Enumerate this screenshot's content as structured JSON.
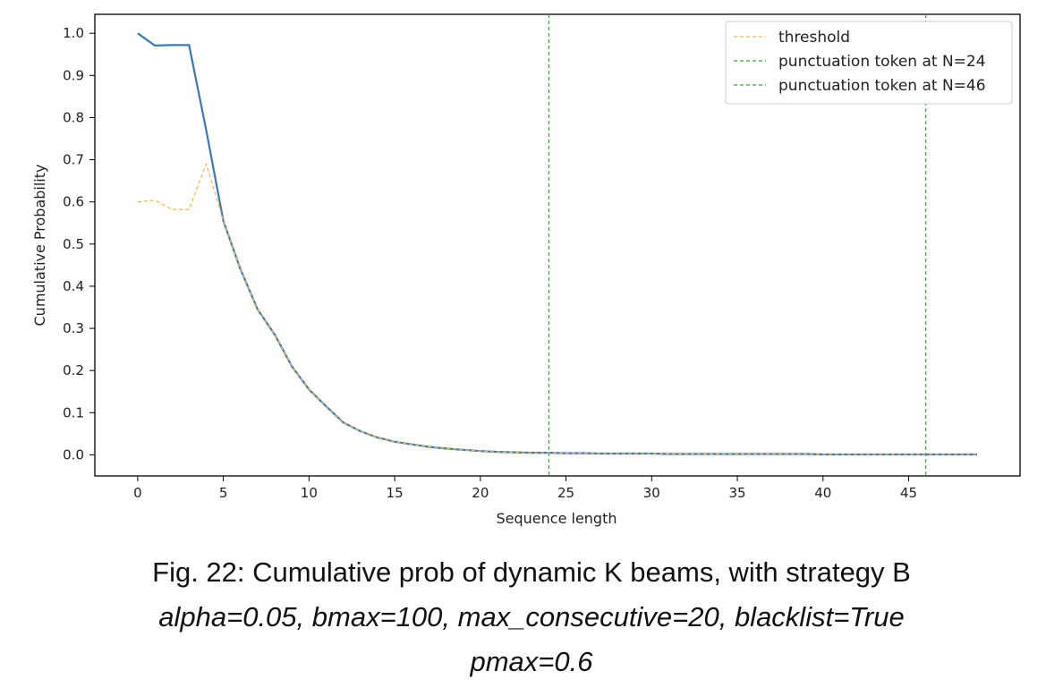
{
  "chart_data": {
    "type": "line",
    "xlabel": "Sequence length",
    "ylabel": "Cumulative Probability",
    "xlim": [
      -2.5,
      51.5
    ],
    "ylim": [
      -0.05,
      1.045
    ],
    "xticks": [
      0,
      5,
      10,
      15,
      20,
      25,
      30,
      35,
      40,
      45
    ],
    "yticks": [
      0.0,
      0.1,
      0.2,
      0.3,
      0.4,
      0.5,
      0.6,
      0.7,
      0.8,
      0.9,
      1.0
    ],
    "grid": false,
    "legend_position": "top-right",
    "series": [
      {
        "name": "",
        "color": "#3a78b8",
        "style": "solid",
        "x": [
          0,
          1,
          2,
          3,
          4,
          5,
          6,
          7,
          8,
          9,
          10,
          11,
          12,
          13,
          14,
          15,
          16,
          17,
          18,
          19,
          20,
          21,
          22,
          23,
          24,
          25,
          26,
          27,
          28,
          29,
          30,
          31,
          32,
          33,
          34,
          35,
          36,
          37,
          38,
          39,
          40,
          41,
          42,
          43,
          44,
          45,
          46,
          47,
          48,
          49
        ],
        "y": [
          1.0,
          0.971,
          0.972,
          0.972,
          0.77,
          0.555,
          0.44,
          0.345,
          0.285,
          0.21,
          0.155,
          0.115,
          0.077,
          0.056,
          0.041,
          0.031,
          0.025,
          0.019,
          0.015,
          0.012,
          0.009,
          0.007,
          0.006,
          0.005,
          0.005,
          0.004,
          0.004,
          0.003,
          0.003,
          0.003,
          0.003,
          0.002,
          0.002,
          0.002,
          0.002,
          0.002,
          0.002,
          0.002,
          0.002,
          0.002,
          0.001,
          0.001,
          0.001,
          0.001,
          0.001,
          0.001,
          0.001,
          0.001,
          0.001,
          0.001
        ]
      },
      {
        "name": "threshold",
        "color": "#f5b94a",
        "style": "dashed",
        "x": [
          0,
          1,
          2,
          3,
          4,
          5,
          6,
          7,
          8,
          9,
          10,
          11,
          12,
          13,
          14,
          15,
          16,
          17,
          18,
          19,
          20,
          21,
          22,
          23,
          24,
          25,
          26,
          27,
          28,
          29,
          30,
          31,
          32,
          33,
          34,
          35,
          36,
          37,
          38,
          39,
          40,
          41,
          42,
          43,
          44,
          45,
          46,
          47,
          48,
          49
        ],
        "y": [
          0.6,
          0.604,
          0.582,
          0.582,
          0.69,
          0.555,
          0.44,
          0.345,
          0.285,
          0.21,
          0.155,
          0.115,
          0.077,
          0.056,
          0.041,
          0.031,
          0.025,
          0.019,
          0.015,
          0.012,
          0.009,
          0.007,
          0.006,
          0.005,
          0.005,
          0.004,
          0.004,
          0.003,
          0.003,
          0.003,
          0.003,
          0.002,
          0.002,
          0.002,
          0.002,
          0.002,
          0.002,
          0.002,
          0.002,
          0.002,
          0.001,
          0.001,
          0.001,
          0.001,
          0.001,
          0.001,
          0.001,
          0.001,
          0.001,
          0.001
        ]
      }
    ],
    "vlines": [
      {
        "name": "punctuation token at N=24",
        "x": 24,
        "color": "#3aa53a",
        "style": "dashed"
      },
      {
        "name": "punctuation token at N=46",
        "x": 46,
        "color": "#3aa53a",
        "style": "dashed"
      }
    ]
  },
  "caption": {
    "line1": "Fig. 22: Cumulative prob of dynamic K beams, with strategy B",
    "line2": "alpha=0.05, bmax=100, max_consecutive=20, blacklist=True",
    "line3": "pmax=0.6"
  }
}
